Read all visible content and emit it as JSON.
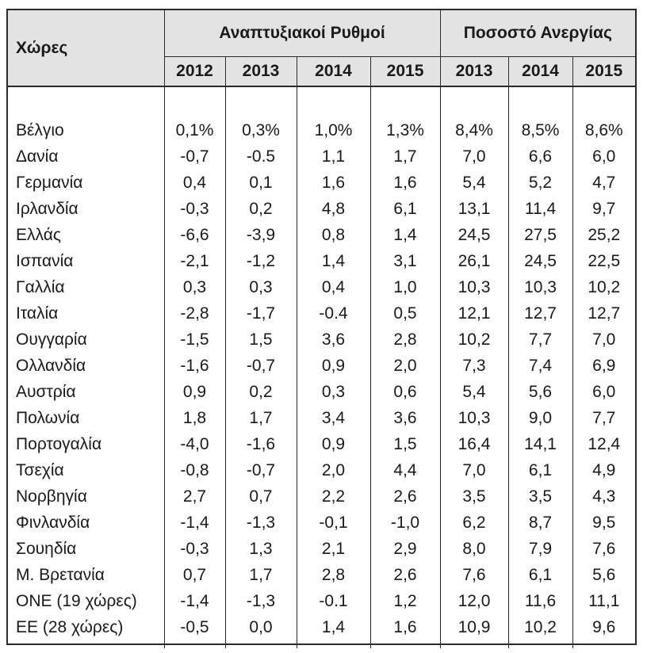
{
  "header": {
    "countries_label": "Χώρες",
    "growth_label": "Αναπτυξιακοί Ρυθμοί",
    "unemployment_label": "Ποσοστό Ανεργίας",
    "growth_years": [
      "2012",
      "2013",
      "2014",
      "2015"
    ],
    "unemployment_years": [
      "2013",
      "2014",
      "2015"
    ]
  },
  "rows": [
    {
      "country": "Βέλγιο",
      "g2012": "0,1%",
      "g2013": "0,3%",
      "g2014": "1,0%",
      "g2015": "1,3%",
      "u2013": "8,4%",
      "u2014": "8,5%",
      "u2015": "8,6%"
    },
    {
      "country": "Δανία",
      "g2012": "-0,7",
      "g2013": "-0.5",
      "g2014": "1,1",
      "g2015": "1,7",
      "u2013": "7,0",
      "u2014": "6,6",
      "u2015": "6,0"
    },
    {
      "country": "Γερμανία",
      "g2012": "0,4",
      "g2013": "0,1",
      "g2014": "1,6",
      "g2015": "1,6",
      "u2013": "5,4",
      "u2014": "5,2",
      "u2015": "4,7"
    },
    {
      "country": "Ιρλανδία",
      "g2012": "-0,3",
      "g2013": "0,2",
      "g2014": "4,8",
      "g2015": "6,1",
      "u2013": "13,1",
      "u2014": "11,4",
      "u2015": "9,7"
    },
    {
      "country": "Ελλάς",
      "g2012": "-6,6",
      "g2013": "-3,9",
      "g2014": "0,8",
      "g2015": "1,4",
      "u2013": "24,5",
      "u2014": "27,5",
      "u2015": "25,2"
    },
    {
      "country": "Ισπανία",
      "g2012": "-2,1",
      "g2013": "-1,2",
      "g2014": "1,4",
      "g2015": "3,1",
      "u2013": "26,1",
      "u2014": "24,5",
      "u2015": "22,5"
    },
    {
      "country": "Γαλλία",
      "g2012": "0,3",
      "g2013": "0,3",
      "g2014": "0,4",
      "g2015": "1,0",
      "u2013": "10,3",
      "u2014": "10,3",
      "u2015": "10,2"
    },
    {
      "country": "Ιταλία",
      "g2012": "-2,8",
      "g2013": "-1,7",
      "g2014": "-0.4",
      "g2015": "0,5",
      "u2013": "12,1",
      "u2014": "12,7",
      "u2015": "12,7"
    },
    {
      "country": "Ουγγαρία",
      "g2012": "-1,5",
      "g2013": "1,5",
      "g2014": "3,6",
      "g2015": "2,8",
      "u2013": "10,2",
      "u2014": "7,7",
      "u2015": "7,0"
    },
    {
      "country": "Ολλανδία",
      "g2012": "-1,6",
      "g2013": "-0,7",
      "g2014": "0,9",
      "g2015": "2,0",
      "u2013": "7,3",
      "u2014": "7,4",
      "u2015": "6,9"
    },
    {
      "country": "Αυστρία",
      "g2012": "0,9",
      "g2013": "0,2",
      "g2014": "0,3",
      "g2015": "0,6",
      "u2013": "5,4",
      "u2014": "5,6",
      "u2015": "6,0"
    },
    {
      "country": "Πολωνία",
      "g2012": "1,8",
      "g2013": "1,7",
      "g2014": "3,4",
      "g2015": "3,6",
      "u2013": "10,3",
      "u2014": "9,0",
      "u2015": "7,7"
    },
    {
      "country": "Πορτογαλία",
      "g2012": "-4,0",
      "g2013": "-1,6",
      "g2014": "0,9",
      "g2015": "1,5",
      "u2013": "16,4",
      "u2014": "14,1",
      "u2015": "12,4"
    },
    {
      "country": "Τσεχία",
      "g2012": "-0,8",
      "g2013": "-0,7",
      "g2014": "2,0",
      "g2015": "4,4",
      "u2013": "7,0",
      "u2014": "6,1",
      "u2015": "4,9"
    },
    {
      "country": "Νορβηγία",
      "g2012": "2,7",
      "g2013": "0,7",
      "g2014": "2,2",
      "g2015": "2,6",
      "u2013": "3,5",
      "u2014": "3,5",
      "u2015": "4,3"
    },
    {
      "country": "Φινλανδία",
      "g2012": "-1,4",
      "g2013": "-1,3",
      "g2014": "-0,1",
      "g2015": "-1,0",
      "u2013": "6,2",
      "u2014": "8,7",
      "u2015": "9,5"
    },
    {
      "country": "Σουηδία",
      "g2012": "-0,3",
      "g2013": "1,3",
      "g2014": "2,1",
      "g2015": "2,9",
      "u2013": "8,0",
      "u2014": "7,9",
      "u2015": "7,6"
    },
    {
      "country": "Μ. Βρετανία",
      "g2012": "0,7",
      "g2013": "1,7",
      "g2014": "2,8",
      "g2015": "2,6",
      "u2013": "7,6",
      "u2014": "6,1",
      "u2015": "5,6"
    },
    {
      "country": "ΟΝΕ (19 χώρες)",
      "g2012": "-1,4",
      "g2013": "-1,3",
      "g2014": "-0.1",
      "g2015": "1,2",
      "u2013": "12,0",
      "u2014": "11,6",
      "u2015": "11,1"
    },
    {
      "country": "ΕΕ (28 χώρες)",
      "g2012": "-0,5",
      "g2013": "0,0",
      "g2014": "1,4",
      "g2015": "1,6",
      "u2013": "10,9",
      "u2014": "10,2",
      "u2015": "9,6"
    }
  ]
}
